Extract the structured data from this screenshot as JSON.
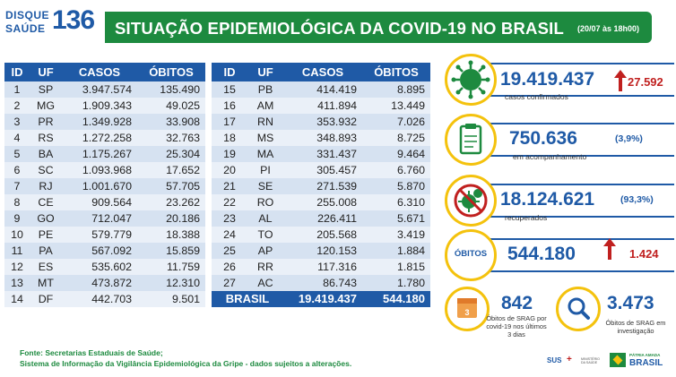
{
  "header": {
    "logo_line1": "DISQUE",
    "logo_line2": "SAÚDE",
    "logo_number": "136",
    "title": "SITUAÇÃO EPIDEMIOLÓGICA DA COVID-19 NO BRASIL",
    "date": "(20/07 às 18h00)"
  },
  "table": {
    "headers": [
      "ID",
      "UF",
      "CASOS",
      "ÓBITOS"
    ],
    "left_rows": [
      [
        "1",
        "SP",
        "3.947.574",
        "135.490"
      ],
      [
        "2",
        "MG",
        "1.909.343",
        "49.025"
      ],
      [
        "3",
        "PR",
        "1.349.928",
        "33.908"
      ],
      [
        "4",
        "RS",
        "1.272.258",
        "32.763"
      ],
      [
        "5",
        "BA",
        "1.175.267",
        "25.304"
      ],
      [
        "6",
        "SC",
        "1.093.968",
        "17.652"
      ],
      [
        "7",
        "RJ",
        "1.001.670",
        "57.705"
      ],
      [
        "8",
        "CE",
        "909.564",
        "23.262"
      ],
      [
        "9",
        "GO",
        "712.047",
        "20.186"
      ],
      [
        "10",
        "PE",
        "579.779",
        "18.388"
      ],
      [
        "11",
        "PA",
        "567.092",
        "15.859"
      ],
      [
        "12",
        "ES",
        "535.602",
        "11.759"
      ],
      [
        "13",
        "MT",
        "473.872",
        "12.310"
      ],
      [
        "14",
        "DF",
        "442.703",
        "9.501"
      ]
    ],
    "right_rows": [
      [
        "15",
        "PB",
        "414.419",
        "8.895"
      ],
      [
        "16",
        "AM",
        "411.894",
        "13.449"
      ],
      [
        "17",
        "RN",
        "353.932",
        "7.026"
      ],
      [
        "18",
        "MS",
        "348.893",
        "8.725"
      ],
      [
        "19",
        "MA",
        "331.437",
        "9.464"
      ],
      [
        "20",
        "PI",
        "305.457",
        "6.760"
      ],
      [
        "21",
        "SE",
        "271.539",
        "5.870"
      ],
      [
        "22",
        "RO",
        "255.008",
        "6.310"
      ],
      [
        "23",
        "AL",
        "226.411",
        "5.671"
      ],
      [
        "24",
        "TO",
        "205.568",
        "3.419"
      ],
      [
        "25",
        "AP",
        "120.153",
        "1.884"
      ],
      [
        "26",
        "RR",
        "117.316",
        "1.815"
      ],
      [
        "27",
        "AC",
        "86.743",
        "1.780"
      ]
    ],
    "total_label": "BRASIL",
    "total_cases": "19.419.437",
    "total_deaths": "544.180"
  },
  "summary": {
    "confirmed": "19.419.437",
    "confirmed_label": "casos confirmados",
    "confirmed_delta": "27.592",
    "monitoring": "750.636",
    "monitoring_pct": "(3,9%)",
    "monitoring_label": "em acompanhamento",
    "recovered": "18.124.621",
    "recovered_pct": "(93,3%)",
    "recovered_label": "recuperados",
    "deaths_badge": "ÓBITOS",
    "deaths": "544.180",
    "deaths_delta": "1.424",
    "srag_recent": "842",
    "srag_recent_label_1": "Óbitos de SRAG por",
    "srag_recent_label_2": "covid-19 nos últimos",
    "srag_recent_label_3": "3 dias",
    "srag_investigation": "3.473",
    "srag_investigation_label_1": "Óbitos de SRAG em",
    "srag_investigation_label_2": "investigação"
  },
  "footer": {
    "line1": "Fonte: Secretarias Estaduais de Saúde;",
    "line2": "Sistema de Informação da Vigilância Epidemiológica da Gripe - dados sujeitos a alterações."
  },
  "gov": {
    "sus": "SUS",
    "ministry": "MINISTÉRIO DA SAÚDE",
    "patria": "PÁTRIA AMADA",
    "brasil": "BRASIL"
  },
  "colors": {
    "green": "#1d8a3f",
    "blue": "#1f5aa6",
    "red": "#c0201f",
    "yellow": "#f4c20d"
  }
}
